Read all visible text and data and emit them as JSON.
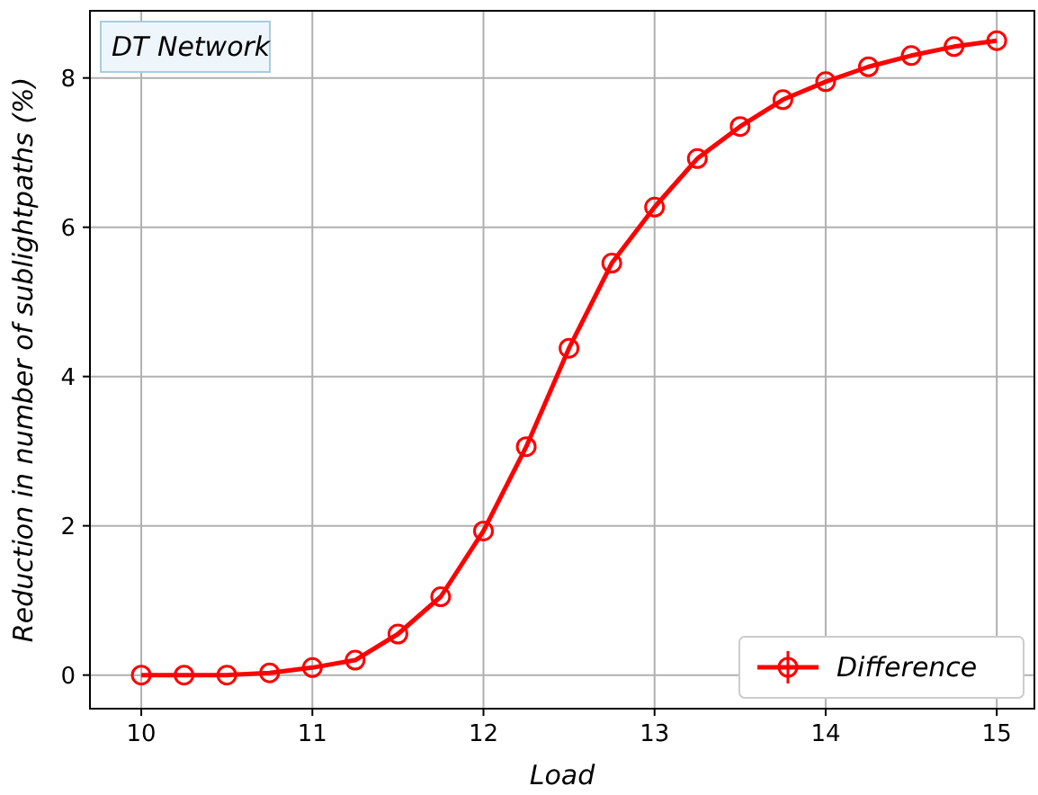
{
  "chart_data": {
    "type": "line",
    "xlabel": "Load",
    "ylabel": "Reduction in number of sublightpaths (%)",
    "annotations": [
      "DT Network"
    ],
    "x": [
      10,
      10.25,
      10.5,
      10.75,
      11,
      11.25,
      11.5,
      11.75,
      12,
      12.25,
      12.5,
      12.75,
      13,
      13.25,
      13.5,
      13.75,
      14,
      14.25,
      14.5,
      14.75,
      15
    ],
    "series": [
      {
        "name": "Difference",
        "color": "#ff0000",
        "values": [
          0,
          0,
          0,
          0.03,
          0.1,
          0.2,
          0.55,
          1.05,
          1.93,
          3.06,
          4.38,
          5.52,
          6.27,
          6.92,
          7.35,
          7.71,
          7.95,
          8.15,
          8.3,
          8.42,
          8.5
        ]
      }
    ],
    "xlim": [
      9.7,
      15.22
    ],
    "ylim": [
      -0.45,
      8.9
    ],
    "xticks": [
      10,
      11,
      12,
      13,
      14,
      15
    ],
    "yticks": [
      0,
      2,
      4,
      6,
      8
    ],
    "grid": true,
    "legend": "bottom right",
    "marker": "circle",
    "line_style": "solid"
  }
}
